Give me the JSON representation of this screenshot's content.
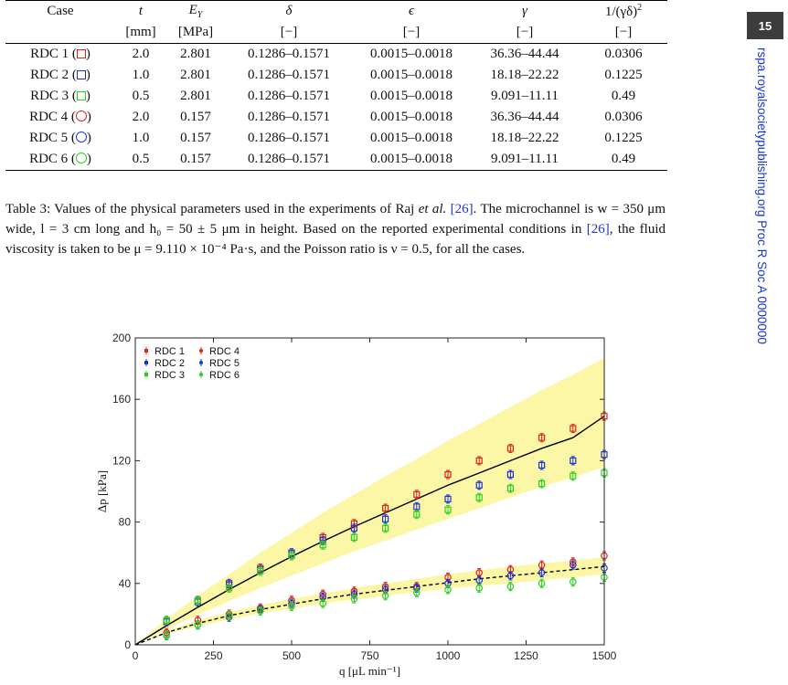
{
  "page_number": "15",
  "sidebar_text": "rspa.royalsocietypublishing.org  Proc R Soc A 0000000",
  "table": {
    "headers": [
      "Case",
      "t",
      "E",
      "δ",
      "ϵ",
      "γ",
      "1/(γδ)"
    ],
    "header_sub": "Y",
    "header_sup": "2",
    "units": [
      "",
      "[mm]",
      "[MPa]",
      "[−]",
      "[−]",
      "[−]",
      "[−]"
    ],
    "rows": [
      {
        "case": "RDC 1 (",
        "marker": "square",
        "color": "#e0231c",
        "t": "2.0",
        "E": "2.801",
        "delta": "0.1286–0.1571",
        "eps": "0.0015–0.0018",
        "gamma": "36.36–44.44",
        "inv": "0.0306"
      },
      {
        "case": "RDC 2 (",
        "marker": "square",
        "color": "#1d32d8",
        "t": "1.0",
        "E": "2.801",
        "delta": "0.1286–0.1571",
        "eps": "0.0015–0.0018",
        "gamma": "18.18–22.22",
        "inv": "0.1225"
      },
      {
        "case": "RDC 3 (",
        "marker": "square",
        "color": "#2ad01f",
        "t": "0.5",
        "E": "2.801",
        "delta": "0.1286–0.1571",
        "eps": "0.0015–0.0018",
        "gamma": "9.091–11.11",
        "inv": "0.49"
      },
      {
        "case": "RDC 4 (",
        "marker": "circle",
        "color": "#e0231c",
        "t": "2.0",
        "E": "0.157",
        "delta": "0.1286–0.1571",
        "eps": "0.0015–0.0018",
        "gamma": "36.36–44.44",
        "inv": "0.0306"
      },
      {
        "case": "RDC 5 (",
        "marker": "circle",
        "color": "#1d32d8",
        "t": "1.0",
        "E": "0.157",
        "delta": "0.1286–0.1571",
        "eps": "0.0015–0.0018",
        "gamma": "18.18–22.22",
        "inv": "0.1225"
      },
      {
        "case": "RDC 6 (",
        "marker": "circle",
        "color": "#2ad01f",
        "t": "0.5",
        "E": "0.157",
        "delta": "0.1286–0.1571",
        "eps": "0.0015–0.0018",
        "gamma": "9.091–11.11",
        "inv": "0.49"
      }
    ],
    "close_paren": ")"
  },
  "caption": {
    "line1_a": "Table 3: Values of the physical parameters used in the experiments of Raj ",
    "line1_em": "et al.",
    "line1_ref": "[26]",
    "line1_b": ". The",
    "line2": "microchannel is w = 350 μm wide, l = 3 cm long and h₀ = 50 ± 5 μm in height. Based on the",
    "line3_a": "reported experimental conditions in ",
    "line3_ref": "[26]",
    "line3_b": ", the fluid viscosity is taken to be μ = 9.110 × 10⁻⁴ Pa·s,",
    "line4": "and the Poisson ratio is ν = 0.5, for all the cases."
  },
  "chart_data": {
    "type": "scatter",
    "xlabel": "q [μL min⁻¹]",
    "ylabel": "Δp [kPa]",
    "xlim": [
      0,
      1500
    ],
    "ylim": [
      0,
      200
    ],
    "xticks": [
      0,
      250,
      500,
      750,
      1000,
      1250,
      1500
    ],
    "yticks": [
      0,
      40,
      80,
      120,
      160,
      200
    ],
    "grid": false,
    "legend_position": "top-left",
    "x": [
      100,
      200,
      300,
      400,
      500,
      600,
      700,
      800,
      900,
      1000,
      1100,
      1200,
      1300,
      1400,
      1500
    ],
    "series": [
      {
        "name": "RDC 1",
        "marker": "square",
        "color": "#e0231c",
        "values": [
          16,
          29,
          39,
          50,
          59,
          70,
          79,
          89,
          98,
          111,
          120,
          128,
          135,
          141,
          149
        ]
      },
      {
        "name": "RDC 2",
        "marker": "square",
        "color": "#1d32d8",
        "values": [
          15,
          28,
          40,
          49,
          60,
          68,
          76,
          82,
          90,
          95,
          104,
          111,
          117,
          120,
          124
        ]
      },
      {
        "name": "RDC 3",
        "marker": "square",
        "color": "#2ad01f",
        "values": [
          16,
          29,
          37,
          48,
          58,
          65,
          70,
          76,
          85,
          88,
          96,
          102,
          105,
          110,
          112
        ]
      },
      {
        "name": "RDC 4",
        "marker": "circle",
        "color": "#e0231c",
        "values": [
          8,
          16,
          20,
          24,
          29,
          33,
          35,
          38,
          38,
          44,
          47,
          49,
          52,
          54,
          58
        ]
      },
      {
        "name": "RDC 5",
        "marker": "circle",
        "color": "#1d32d8",
        "values": [
          6,
          13,
          18,
          23,
          27,
          31,
          33,
          36,
          37,
          40,
          42,
          45,
          47,
          52,
          50
        ]
      },
      {
        "name": "RDC 6",
        "marker": "circle",
        "color": "#2ad01f",
        "values": [
          6,
          13,
          19,
          22,
          25,
          27,
          30,
          32,
          34,
          36,
          37,
          38,
          40,
          41,
          44
        ]
      }
    ],
    "curves": [
      {
        "style": "solid",
        "color": "#000000",
        "x": [
          0,
          100,
          200,
          300,
          400,
          500,
          600,
          700,
          800,
          900,
          1000,
          1100,
          1200,
          1300,
          1400,
          1500
        ],
        "y": [
          0,
          12.5,
          24.5,
          36,
          47,
          57.5,
          67.5,
          77,
          86,
          95,
          104,
          112,
          120,
          128,
          135,
          149
        ]
      },
      {
        "style": "dashed",
        "color": "#000000",
        "x": [
          0,
          100,
          200,
          300,
          400,
          500,
          600,
          700,
          800,
          900,
          1000,
          1100,
          1200,
          1300,
          1400,
          1500
        ],
        "y": [
          0,
          8,
          14,
          19,
          23,
          26.5,
          30,
          33,
          35.5,
          38,
          40.5,
          43,
          45,
          47,
          49,
          51
        ]
      }
    ],
    "bands": [
      {
        "color": "#fbf7a6",
        "x": [
          0,
          100,
          200,
          300,
          400,
          500,
          600,
          700,
          800,
          900,
          1000,
          1100,
          1200,
          1300,
          1400,
          1500
        ],
        "upper": [
          0,
          17,
          32,
          46,
          60,
          73,
          86,
          98,
          110,
          121,
          133,
          144,
          155,
          166,
          176,
          187
        ],
        "lower": [
          0,
          10,
          19.5,
          28.5,
          37,
          45,
          53,
          61,
          68,
          75,
          82,
          89,
          96,
          103,
          109,
          116
        ]
      },
      {
        "color": "#fbf7a6",
        "x": [
          0,
          100,
          200,
          300,
          400,
          500,
          600,
          700,
          800,
          900,
          1000,
          1100,
          1200,
          1300,
          1400,
          1500
        ],
        "upper": [
          0,
          9,
          16,
          21.5,
          26,
          30,
          33.5,
          37,
          40,
          43,
          46,
          48.5,
          51,
          53,
          55,
          57
        ],
        "lower": [
          0,
          7,
          12,
          16.5,
          20.5,
          23.5,
          27,
          29.5,
          32,
          34.5,
          36.5,
          38.5,
          40,
          42,
          44,
          46
        ]
      }
    ]
  }
}
